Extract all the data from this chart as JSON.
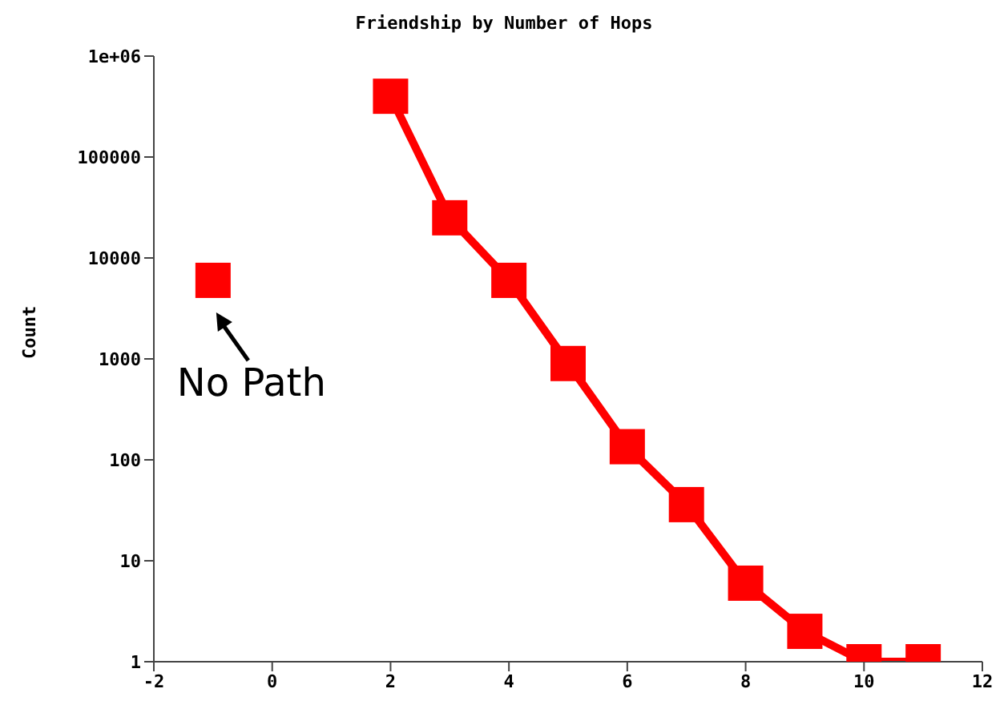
{
  "chart_data": {
    "type": "line",
    "title": "Friendship by Number of Hops",
    "ylabel": "Count",
    "log": "y",
    "xlim": [
      -2,
      12
    ],
    "xticks": [
      -2,
      0,
      2,
      4,
      6,
      8,
      10,
      12
    ],
    "ylim": [
      1,
      1000000
    ],
    "yticks": [
      1,
      10,
      100,
      1000,
      10000,
      100000,
      {
        "value": 1000000,
        "label": "1e+06"
      }
    ],
    "grid": false,
    "marker": "square",
    "line_style": "solid",
    "annotations": [
      {
        "text": "No Path",
        "x": -1,
        "y": 6000
      }
    ],
    "series": [
      {
        "type": "scatter",
        "color": "#ff0000",
        "x": [
          -1
        ],
        "values": [
          6000
        ]
      },
      {
        "type": "line",
        "color": "#ff0000",
        "x": [
          2,
          3,
          4,
          5,
          6,
          7,
          8,
          9,
          10,
          11
        ],
        "values": [
          400000,
          25000,
          6000,
          900,
          135,
          36,
          6,
          2,
          1,
          1
        ]
      }
    ]
  }
}
